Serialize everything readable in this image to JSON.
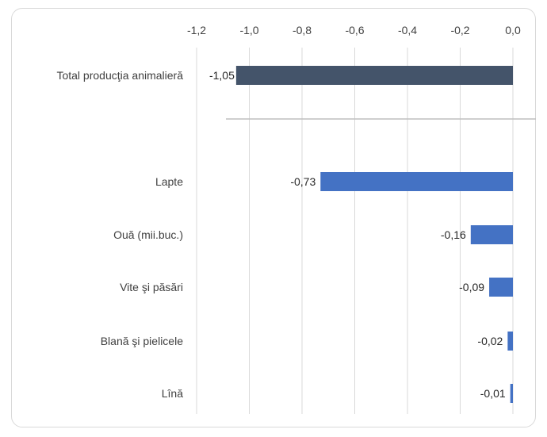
{
  "chart_data": {
    "type": "bar",
    "orientation": "horizontal",
    "title": "",
    "xlabel": "",
    "ylabel": "",
    "xlim": [
      -1.2,
      0.0
    ],
    "x_axis_position": "top",
    "x_ticks": [
      "-1,2",
      "-1,0",
      "-0,8",
      "-0,6",
      "-0,4",
      "-0,2",
      "0,0"
    ],
    "x_tick_values": [
      -1.2,
      -1.0,
      -0.8,
      -0.6,
      -0.4,
      -0.2,
      0.0
    ],
    "grid": true,
    "legend": "none",
    "categories": [
      "Total producţia animalieră",
      "Lapte",
      "Ouă (mii.buc.)",
      "Vite şi păsări",
      "Blană şi pielicele",
      "Lînă"
    ],
    "values": [
      -1.05,
      -0.73,
      -0.16,
      -0.09,
      -0.02,
      -0.01
    ],
    "data_labels": [
      "-1,05",
      "-0,73",
      "-0,16",
      "-0,09",
      "-0,02",
      "-0,01"
    ],
    "colors": {
      "total": "#44546a",
      "items": "#4472c4",
      "grid": "#d9d9d9",
      "separator": "#bfbfbf",
      "text": "#404040"
    }
  }
}
